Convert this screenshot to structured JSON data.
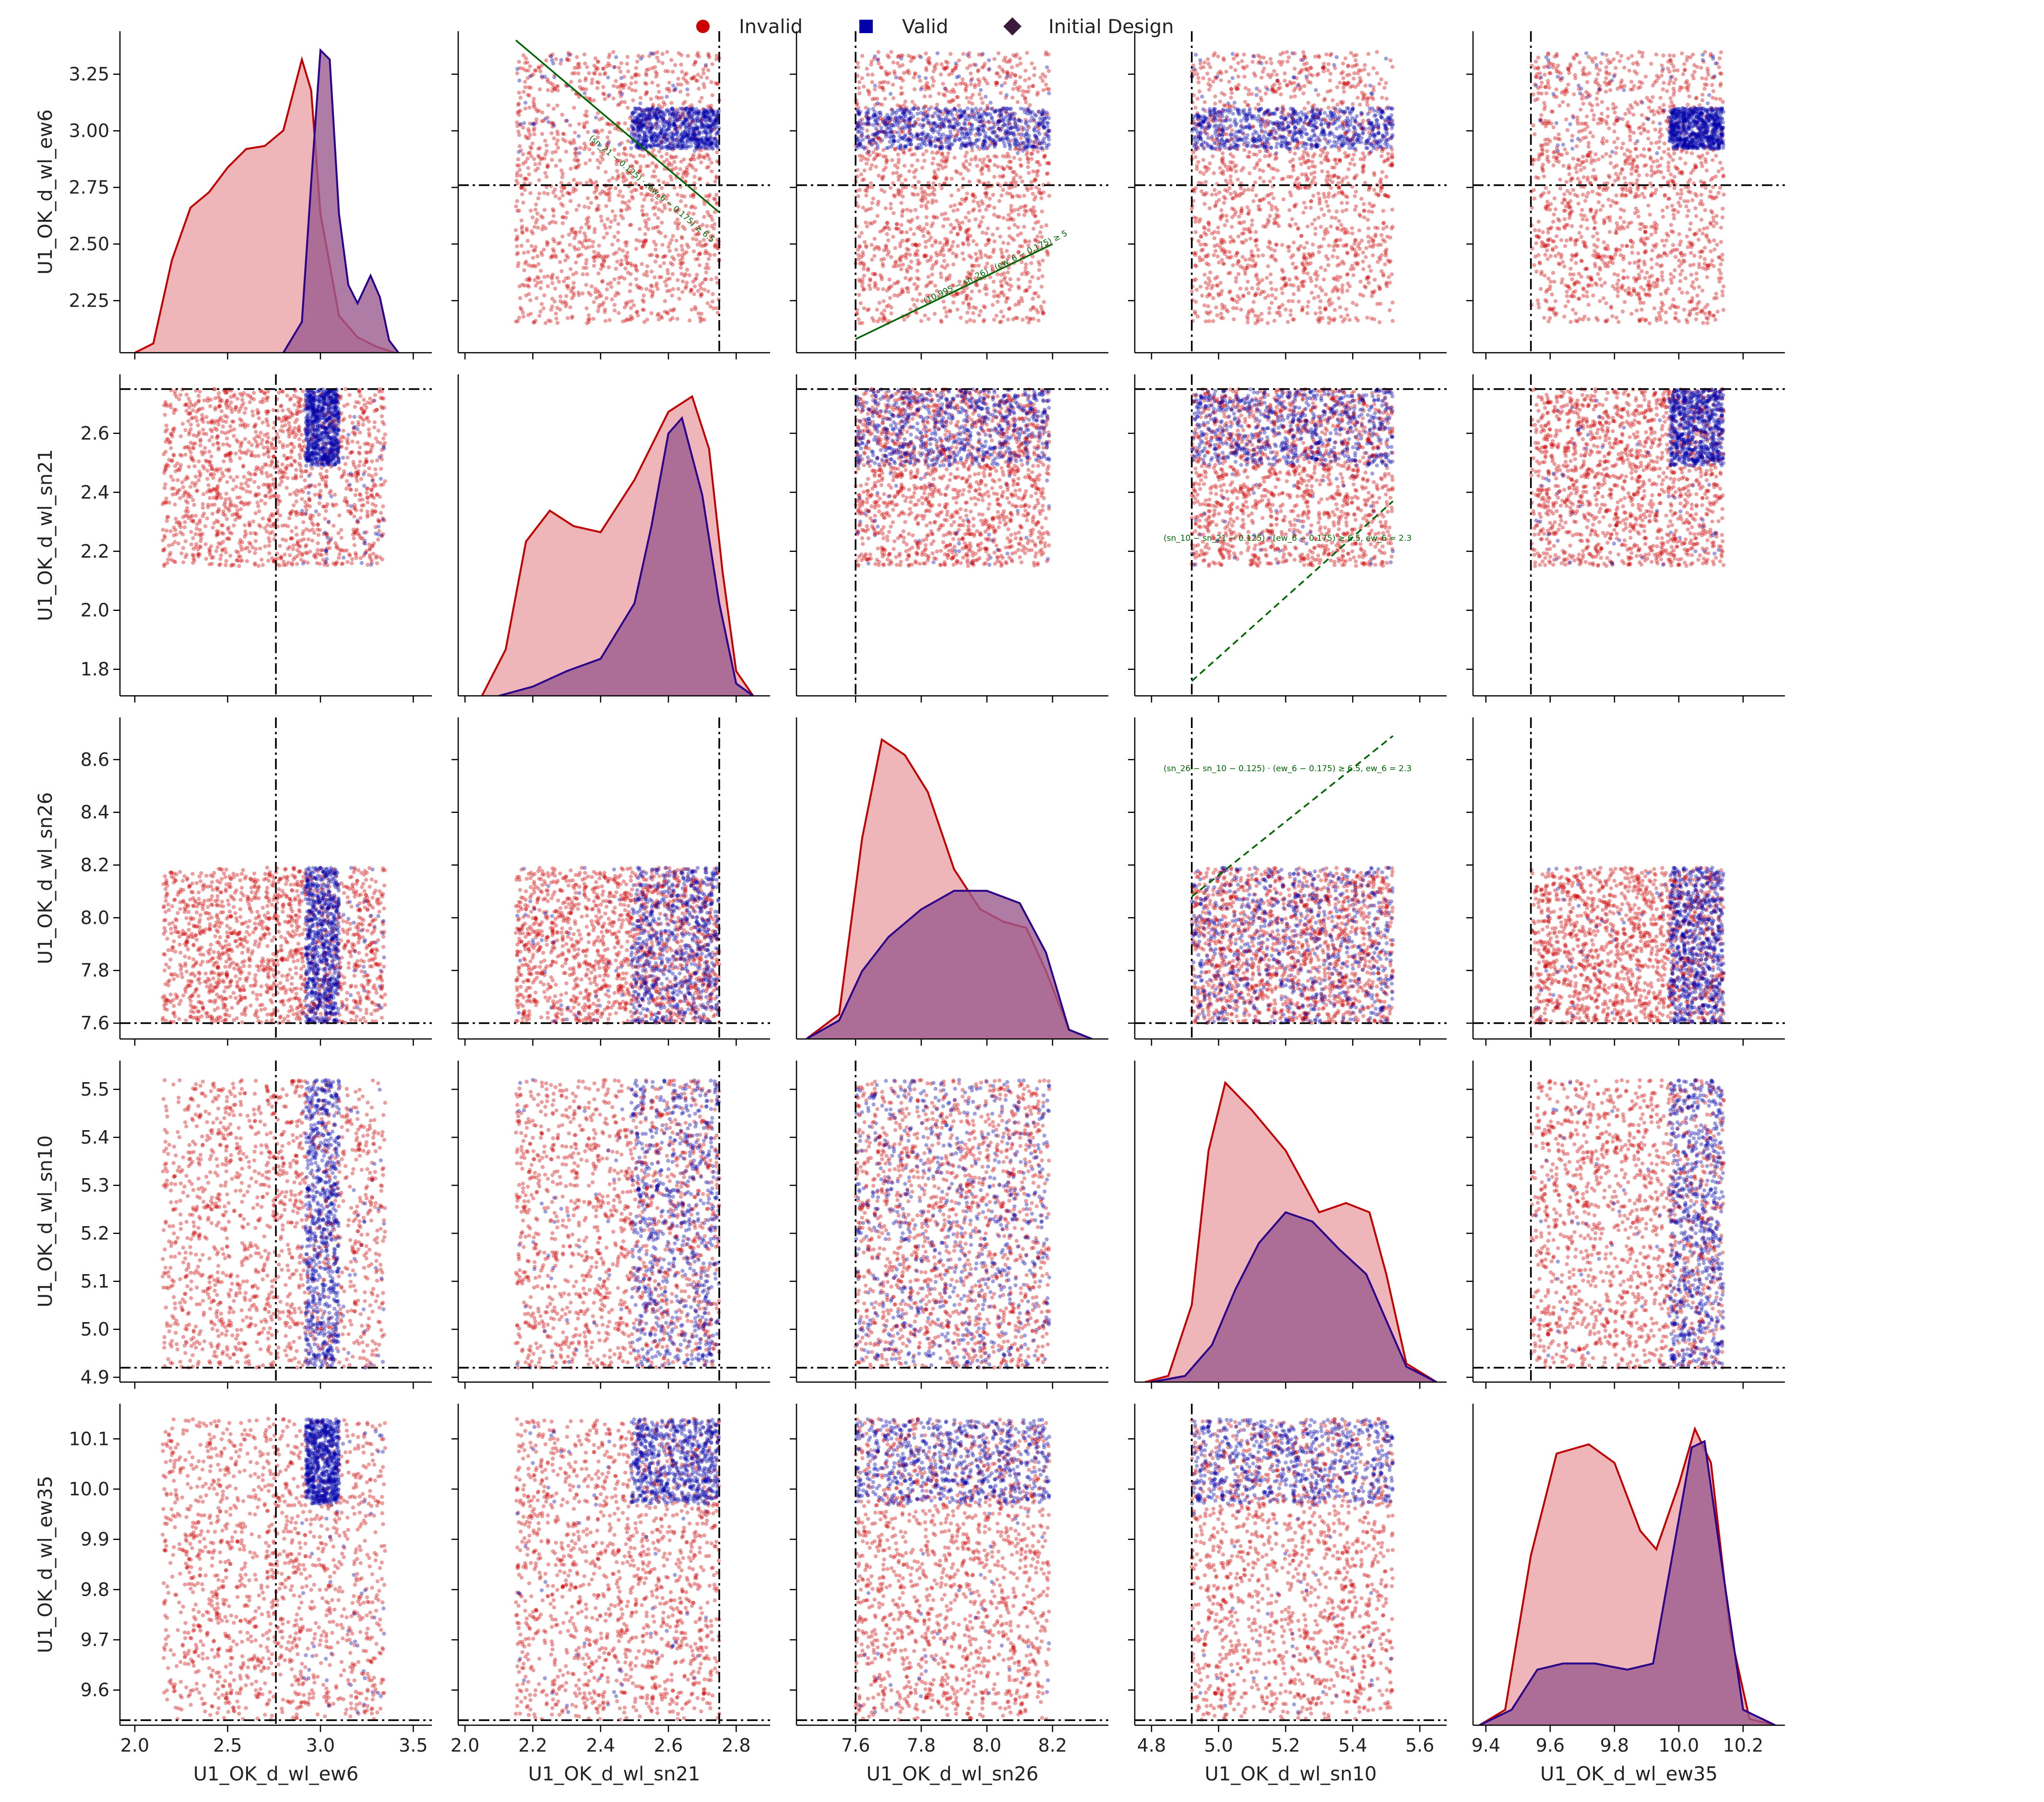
{
  "legend": {
    "items": [
      {
        "label": "Invalid",
        "color": "#cc0000",
        "marker": "circle"
      },
      {
        "label": "Valid",
        "color": "#0000aa",
        "marker": "square"
      },
      {
        "label": "Initial Design",
        "color": "#3b1a3b",
        "marker": "diamond"
      }
    ]
  },
  "colors": {
    "invalid": "#cc0000",
    "valid": "#0000aa",
    "invalid_kde_fill": "#eba9ab",
    "valid_kde_fill": "#9b5b8f",
    "invalid_kde_line": "#c00000",
    "valid_kde_line": "#2a008a",
    "constraint": "#006400"
  },
  "chart_data": {
    "type": "scatter",
    "variables": [
      {
        "name": "U1_OK_d_wl_ew6",
        "range": [
          1.92,
          3.6
        ],
        "ticks": [
          "2.0",
          "2.5",
          "3.0",
          "3.5"
        ],
        "tick_values": [
          2.0,
          2.5,
          3.0,
          3.5
        ],
        "row_range": [
          2.02,
          3.44
        ],
        "row_ticks": [
          "2.25",
          "2.50",
          "2.75",
          "3.00",
          "3.25"
        ],
        "row_tick_values": [
          2.25,
          2.5,
          2.75,
          3.0,
          3.25
        ],
        "initial": 2.76,
        "sample_range": [
          2.15,
          3.35
        ],
        "valid_range": [
          2.92,
          3.1
        ]
      },
      {
        "name": "U1_OK_d_wl_sn21",
        "range": [
          1.98,
          2.9
        ],
        "ticks": [
          "2.0",
          "2.2",
          "2.4",
          "2.6",
          "2.8"
        ],
        "tick_values": [
          2.0,
          2.2,
          2.4,
          2.6,
          2.8
        ],
        "row_range": [
          1.71,
          2.8
        ],
        "row_ticks": [
          "1.8",
          "2.0",
          "2.2",
          "2.4",
          "2.6"
        ],
        "row_tick_values": [
          1.8,
          2.0,
          2.2,
          2.4,
          2.6
        ],
        "initial": 2.75,
        "sample_range": [
          2.15,
          2.75
        ],
        "valid_range": [
          2.49,
          2.75
        ]
      },
      {
        "name": "U1_OK_d_wl_sn26",
        "range": [
          7.42,
          8.37
        ],
        "ticks": [
          "7.6",
          "7.8",
          "8.0",
          "8.2"
        ],
        "tick_values": [
          7.6,
          7.8,
          8.0,
          8.2
        ],
        "row_range": [
          7.54,
          8.76
        ],
        "row_ticks": [
          "7.6",
          "7.8",
          "8.0",
          "8.2",
          "8.4",
          "8.6"
        ],
        "row_tick_values": [
          7.6,
          7.8,
          8.0,
          8.2,
          8.4,
          8.6
        ],
        "initial": 7.6,
        "sample_range": [
          7.6,
          8.19
        ],
        "valid_range": [
          7.6,
          8.19
        ]
      },
      {
        "name": "U1_OK_d_wl_sn10",
        "range": [
          4.75,
          5.68
        ],
        "ticks": [
          "4.8",
          "5.0",
          "5.2",
          "5.4",
          "5.6"
        ],
        "tick_values": [
          4.8,
          5.0,
          5.2,
          5.4,
          5.6
        ],
        "row_range": [
          4.89,
          5.56
        ],
        "row_ticks": [
          "4.9",
          "5.0",
          "5.1",
          "5.2",
          "5.3",
          "5.4",
          "5.5"
        ],
        "row_tick_values": [
          4.9,
          5.0,
          5.1,
          5.2,
          5.3,
          5.4,
          5.5
        ],
        "initial": 4.92,
        "sample_range": [
          4.92,
          5.52
        ],
        "valid_range": [
          4.92,
          5.52
        ]
      },
      {
        "name": "U1_OK_d_wl_ew35",
        "range": [
          9.36,
          10.33
        ],
        "ticks": [
          "9.4",
          "9.6",
          "9.8",
          "10.0",
          "10.2"
        ],
        "tick_values": [
          9.4,
          9.6,
          9.8,
          10.0,
          10.2
        ],
        "row_range": [
          9.53,
          10.17
        ],
        "row_ticks": [
          "9.6",
          "9.7",
          "9.8",
          "9.9",
          "10.0",
          "10.1"
        ],
        "row_tick_values": [
          9.6,
          9.7,
          9.8,
          9.9,
          10.0,
          10.1
        ],
        "initial": 9.54,
        "sample_range": [
          9.54,
          10.14
        ],
        "valid_range": [
          9.97,
          10.14
        ]
      }
    ],
    "kde": [
      {
        "invalid": [
          [
            2.0,
            0.0
          ],
          [
            2.1,
            0.03
          ],
          [
            2.2,
            0.3
          ],
          [
            2.3,
            0.47
          ],
          [
            2.4,
            0.52
          ],
          [
            2.5,
            0.6
          ],
          [
            2.6,
            0.66
          ],
          [
            2.7,
            0.67
          ],
          [
            2.8,
            0.72
          ],
          [
            2.9,
            0.95
          ],
          [
            2.95,
            0.85
          ],
          [
            3.0,
            0.45
          ],
          [
            3.1,
            0.12
          ],
          [
            3.2,
            0.05
          ],
          [
            3.3,
            0.02
          ],
          [
            3.4,
            0.0
          ]
        ],
        "valid": [
          [
            2.8,
            0.0
          ],
          [
            2.9,
            0.1
          ],
          [
            2.95,
            0.55
          ],
          [
            3.0,
            0.98
          ],
          [
            3.05,
            0.95
          ],
          [
            3.1,
            0.45
          ],
          [
            3.15,
            0.22
          ],
          [
            3.2,
            0.16
          ],
          [
            3.27,
            0.25
          ],
          [
            3.32,
            0.18
          ],
          [
            3.37,
            0.04
          ],
          [
            3.42,
            0.0
          ]
        ]
      },
      {
        "invalid": [
          [
            2.05,
            0.0
          ],
          [
            2.12,
            0.15
          ],
          [
            2.18,
            0.5
          ],
          [
            2.25,
            0.6
          ],
          [
            2.32,
            0.55
          ],
          [
            2.4,
            0.53
          ],
          [
            2.5,
            0.7
          ],
          [
            2.6,
            0.92
          ],
          [
            2.67,
            0.97
          ],
          [
            2.72,
            0.8
          ],
          [
            2.76,
            0.4
          ],
          [
            2.8,
            0.08
          ],
          [
            2.85,
            0.0
          ]
        ],
        "valid": [
          [
            2.1,
            0.0
          ],
          [
            2.2,
            0.03
          ],
          [
            2.3,
            0.08
          ],
          [
            2.4,
            0.12
          ],
          [
            2.5,
            0.3
          ],
          [
            2.55,
            0.55
          ],
          [
            2.6,
            0.85
          ],
          [
            2.64,
            0.9
          ],
          [
            2.7,
            0.65
          ],
          [
            2.75,
            0.3
          ],
          [
            2.8,
            0.04
          ],
          [
            2.85,
            0.0
          ]
        ]
      },
      {
        "invalid": [
          [
            7.45,
            0.0
          ],
          [
            7.55,
            0.08
          ],
          [
            7.62,
            0.65
          ],
          [
            7.68,
            0.97
          ],
          [
            7.75,
            0.92
          ],
          [
            7.82,
            0.8
          ],
          [
            7.9,
            0.55
          ],
          [
            7.98,
            0.42
          ],
          [
            8.05,
            0.38
          ],
          [
            8.12,
            0.36
          ],
          [
            8.18,
            0.22
          ],
          [
            8.25,
            0.03
          ],
          [
            8.32,
            0.0
          ]
        ],
        "valid": [
          [
            7.45,
            0.0
          ],
          [
            7.55,
            0.06
          ],
          [
            7.62,
            0.22
          ],
          [
            7.7,
            0.33
          ],
          [
            7.8,
            0.42
          ],
          [
            7.9,
            0.48
          ],
          [
            8.0,
            0.48
          ],
          [
            8.1,
            0.44
          ],
          [
            8.18,
            0.28
          ],
          [
            8.25,
            0.03
          ],
          [
            8.32,
            0.0
          ]
        ]
      },
      {
        "invalid": [
          [
            4.78,
            0.0
          ],
          [
            4.85,
            0.02
          ],
          [
            4.92,
            0.25
          ],
          [
            4.97,
            0.75
          ],
          [
            5.02,
            0.97
          ],
          [
            5.1,
            0.88
          ],
          [
            5.2,
            0.75
          ],
          [
            5.3,
            0.55
          ],
          [
            5.38,
            0.58
          ],
          [
            5.45,
            0.55
          ],
          [
            5.5,
            0.35
          ],
          [
            5.56,
            0.06
          ],
          [
            5.65,
            0.0
          ]
        ],
        "valid": [
          [
            4.8,
            0.0
          ],
          [
            4.9,
            0.02
          ],
          [
            4.98,
            0.12
          ],
          [
            5.05,
            0.3
          ],
          [
            5.12,
            0.45
          ],
          [
            5.2,
            0.55
          ],
          [
            5.28,
            0.52
          ],
          [
            5.36,
            0.43
          ],
          [
            5.44,
            0.35
          ],
          [
            5.5,
            0.2
          ],
          [
            5.56,
            0.05
          ],
          [
            5.65,
            0.0
          ]
        ]
      },
      {
        "invalid": [
          [
            9.38,
            0.0
          ],
          [
            9.46,
            0.05
          ],
          [
            9.54,
            0.55
          ],
          [
            9.62,
            0.88
          ],
          [
            9.72,
            0.91
          ],
          [
            9.8,
            0.85
          ],
          [
            9.88,
            0.63
          ],
          [
            9.93,
            0.57
          ],
          [
            10.0,
            0.78
          ],
          [
            10.05,
            0.96
          ],
          [
            10.1,
            0.85
          ],
          [
            10.16,
            0.3
          ],
          [
            10.22,
            0.02
          ],
          [
            10.3,
            0.0
          ]
        ],
        "valid": [
          [
            9.38,
            0.0
          ],
          [
            9.48,
            0.05
          ],
          [
            9.56,
            0.18
          ],
          [
            9.64,
            0.2
          ],
          [
            9.74,
            0.2
          ],
          [
            9.84,
            0.18
          ],
          [
            9.92,
            0.2
          ],
          [
            9.98,
            0.55
          ],
          [
            10.04,
            0.9
          ],
          [
            10.08,
            0.92
          ],
          [
            10.13,
            0.55
          ],
          [
            10.2,
            0.05
          ],
          [
            10.3,
            0.0
          ]
        ]
      }
    ],
    "constraints": [
      {
        "row": 0,
        "col": 1,
        "label": "(sn_21 − 0.125) · (ew_6 − 0.175) ≥ 6.5",
        "from": [
          2.15,
          3.4
        ],
        "to": [
          2.75,
          2.64
        ],
        "style": "solid"
      },
      {
        "row": 0,
        "col": 2,
        "label": "(10.995 − sn_26) · (ew_6 − 0.175) ≥ 5",
        "from": [
          7.6,
          2.08
        ],
        "to": [
          8.2,
          2.5
        ],
        "style": "solid"
      },
      {
        "row": 1,
        "col": 3,
        "label": "(sn_10 − sn_21 − 0.125) · (ew_6 − 0.175) ≥ 6.5, ew_6 = 2.3",
        "from": [
          4.92,
          1.76
        ],
        "to": [
          5.52,
          2.37
        ],
        "style": "dashed"
      },
      {
        "row": 2,
        "col": 3,
        "label": "(sn_26 − sn_10 − 0.125) · (ew_6 − 0.175) ≥ 6.5, ew_6 = 2.3",
        "from": [
          4.92,
          8.08
        ],
        "to": [
          5.52,
          8.69
        ],
        "style": "dashed"
      }
    ]
  }
}
